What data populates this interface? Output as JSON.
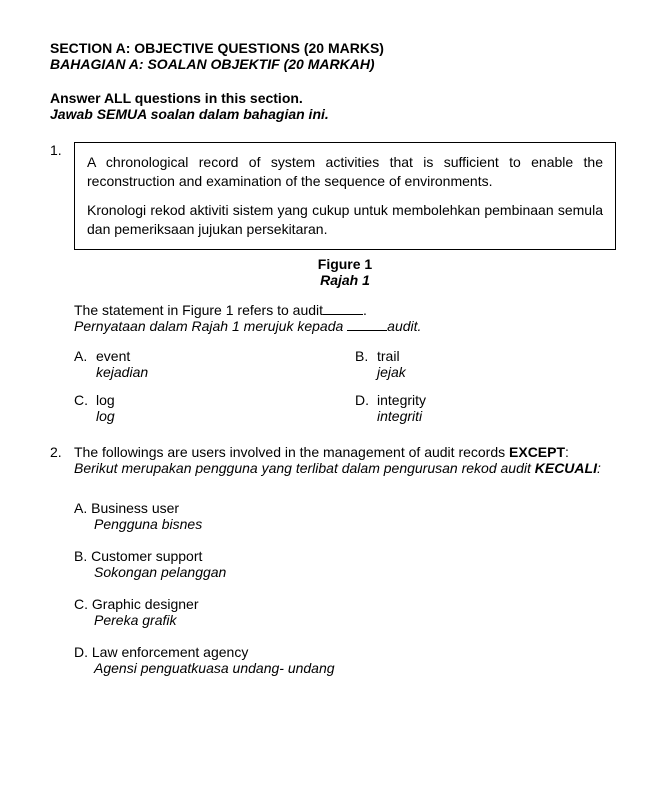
{
  "section": {
    "title_en": "SECTION A: OBJECTIVE QUESTIONS (20 MARKS)",
    "title_my": "BAHAGIAN A: SOALAN OBJEKTIF (20 MARKAH)",
    "instr_en": "Answer ALL questions in this section.",
    "instr_my": "Jawab SEMUA soalan dalam bahagian ini."
  },
  "q1": {
    "num": "1.",
    "box_en": "A chronological record of system activities that is sufficient to enable the reconstruction and examination of the sequence of environments.",
    "box_my": "Kronologi rekod aktiviti sistem yang cukup untuk membolehkan pembinaan semula dan pemeriksaan jujukan persekitaran.",
    "fig_en": "Figure 1",
    "fig_my": "Rajah 1",
    "stem_en_pre": "The statement in Figure 1 refers to audit",
    "stem_en_post": ".",
    "stem_my_pre": "Pernyataan dalam Rajah 1 merujuk kepada ",
    "stem_my_post": "audit.",
    "opts": {
      "a": {
        "letter": "A.",
        "en": "event",
        "my": "kejadian"
      },
      "b": {
        "letter": "B.",
        "en": "trail",
        "my": "jejak"
      },
      "c": {
        "letter": "C.",
        "en": "log",
        "my": "log"
      },
      "d": {
        "letter": "D.",
        "en": "integrity",
        "my": "integriti"
      }
    }
  },
  "q2": {
    "num": "2.",
    "stem_en_pre": "The followings are users involved in the management of audit records ",
    "stem_en_bold": "EXCEPT",
    "stem_en_post": ":",
    "stem_my_pre": "Berikut merupakan pengguna yang terlibat dalam pengurusan rekod audit ",
    "stem_my_bold": "KECUALI",
    "stem_my_post": ":",
    "opts": {
      "a": {
        "line": "A. Business user",
        "my": "Pengguna bisnes"
      },
      "b": {
        "line": "B. Customer support",
        "my": "Sokongan pelanggan"
      },
      "c": {
        "line": "C. Graphic designer",
        "my": "Pereka grafik"
      },
      "d": {
        "line": "D. Law enforcement agency",
        "my": "Agensi penguatkuasa undang- undang"
      }
    }
  }
}
